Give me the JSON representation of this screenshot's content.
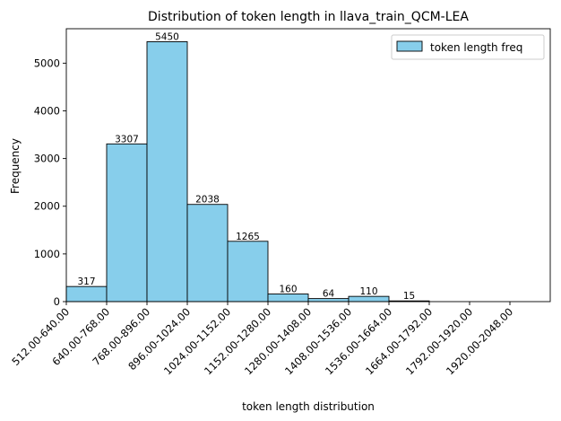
{
  "chart_data": {
    "type": "bar",
    "title": "Distribution of token length in llava_train_QCM-LEA",
    "xlabel": "token length distribution",
    "ylabel": "Frequency",
    "categories": [
      "512.00-640.00",
      "640.00-768.00",
      "768.00-896.00",
      "896.00-1024.00",
      "1024.00-1152.00",
      "1152.00-1280.00",
      "1280.00-1408.00",
      "1408.00-1536.00",
      "1536.00-1664.00",
      "1664.00-1792.00",
      "1792.00-1920.00",
      "1920.00-2048.00"
    ],
    "values": [
      317,
      3307,
      5450,
      2038,
      1265,
      160,
      64,
      110,
      15,
      0,
      0,
      0
    ],
    "data_labels": [
      "317",
      "3307",
      "5450",
      "2038",
      "1265",
      "160",
      "64",
      "110",
      "15",
      "",
      "",
      ""
    ],
    "series": [
      {
        "name": "token length freq",
        "values": [
          317,
          3307,
          5450,
          2038,
          1265,
          160,
          64,
          110,
          15,
          0,
          0,
          0
        ]
      }
    ],
    "ylim": [
      0,
      5722
    ],
    "yticks": [
      0,
      1000,
      2000,
      3000,
      4000,
      5000
    ],
    "ytick_labels": [
      "0",
      "1000",
      "2000",
      "3000",
      "4000",
      "5000"
    ],
    "legend_position": "top-right",
    "grid": false,
    "colors": {
      "bar_fill": "#87ceeb",
      "bar_edge": "#000000"
    }
  }
}
